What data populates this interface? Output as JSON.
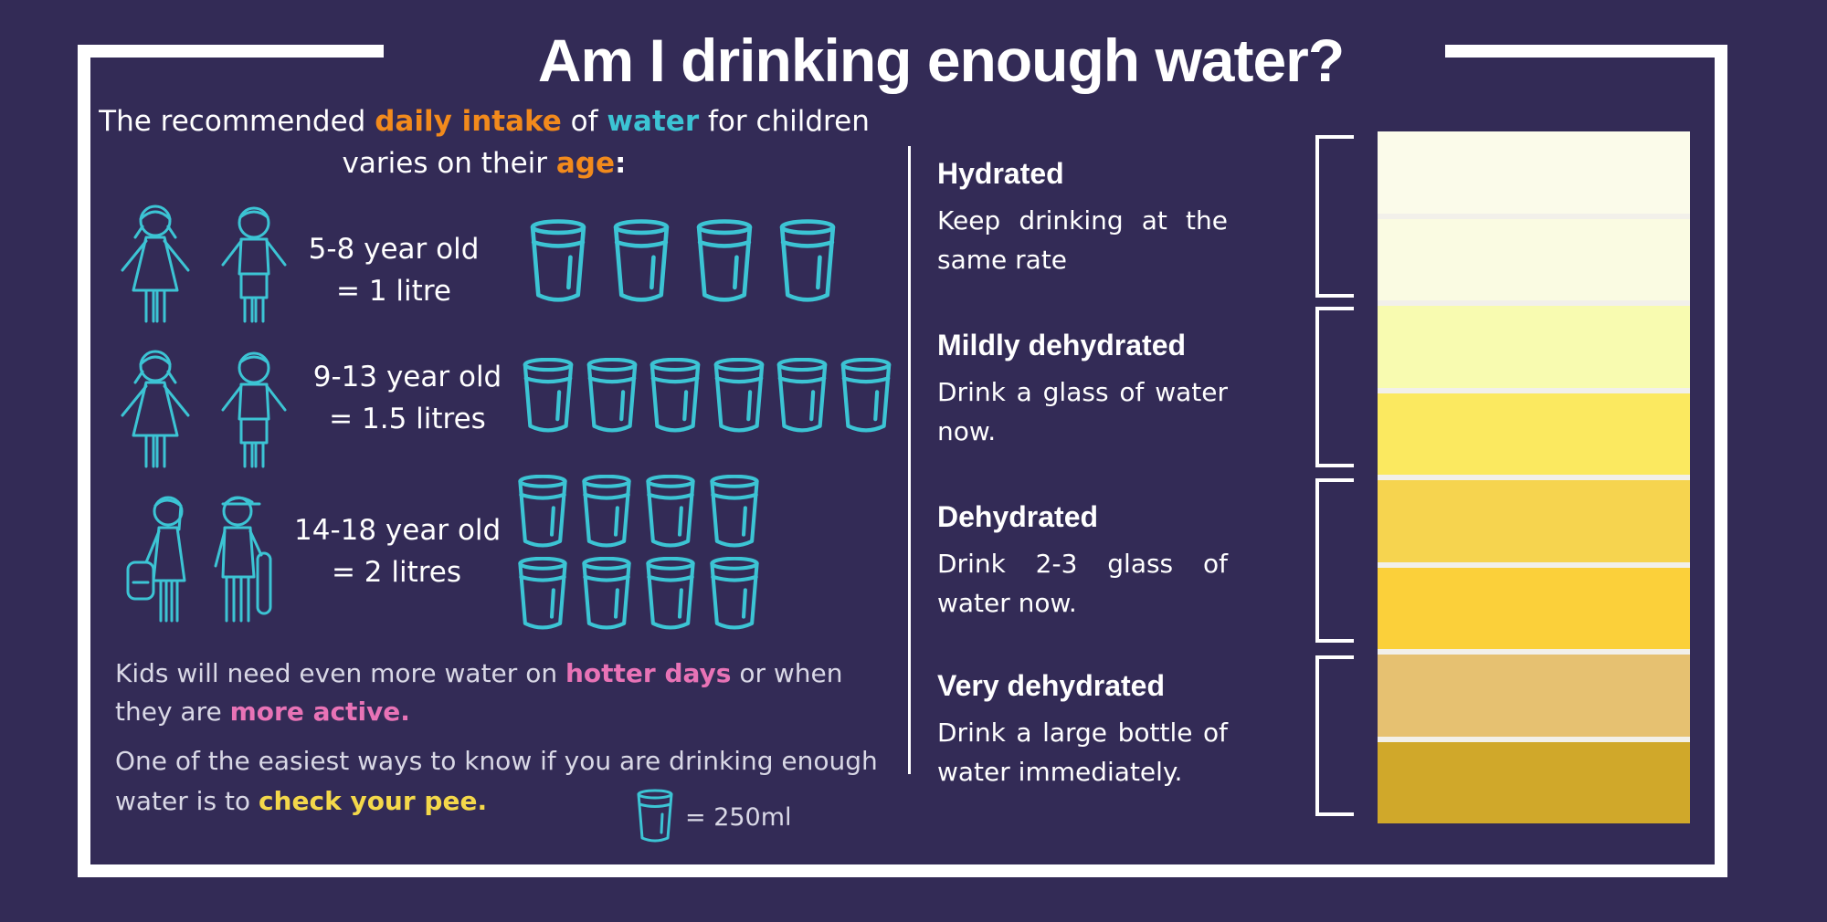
{
  "title": "Am I drinking enough water?",
  "intro": {
    "part1": "The recommended ",
    "highlight1": "daily intake",
    "part2": " of ",
    "highlight2": "water",
    "part3": " for children",
    "line2_part1": "varies on their ",
    "highlight3": "age",
    "line2_part2": ":"
  },
  "age_groups": [
    {
      "age": "5-8 year old",
      "amount": "= 1 litre",
      "glasses": 4
    },
    {
      "age": "9-13 year old",
      "amount": "= 1.5 litres",
      "glasses": 6
    },
    {
      "age": "14-18 year old",
      "amount": "= 2 litres",
      "glasses": 8
    }
  ],
  "notes": {
    "line1_a": "Kids will need even more water on ",
    "line1_highlight": "hotter days",
    "line1_b": " or when",
    "line2_a": "they are ",
    "line2_highlight": "more active.",
    "line3": "One of the easiest ways to know if you are drinking enough",
    "line4_a": "water is to ",
    "line4_highlight": "check your pee."
  },
  "legend": {
    "label": "= 250ml"
  },
  "hydration_levels": [
    {
      "heading": "Hydrated",
      "description": "Keep drinking at the same rate"
    },
    {
      "heading": "Mildly dehydrated",
      "description": "Drink a glass of water now."
    },
    {
      "heading": "Dehydrated",
      "description": "Drink 2-3 glass of water now."
    },
    {
      "heading": "Very dehydrated",
      "description": "Drink a large bottle of water immediately."
    }
  ],
  "colors": {
    "background": "#332b56",
    "accent_orange": "#f28a1c",
    "accent_teal": "#3cc4d4",
    "accent_pink": "#e873b6",
    "accent_yellow": "#f4d84a",
    "urine_scale": [
      "#fbfbea",
      "#fafbe2",
      "#f8fbb0",
      "#fbe960",
      "#f6d44f",
      "#fbd03a",
      "#e6c171",
      "#d0a82a"
    ]
  },
  "icons": [
    "girl-icon",
    "boy-icon",
    "teen-girl-icon",
    "teen-boy-icon",
    "water-glass-icon"
  ]
}
